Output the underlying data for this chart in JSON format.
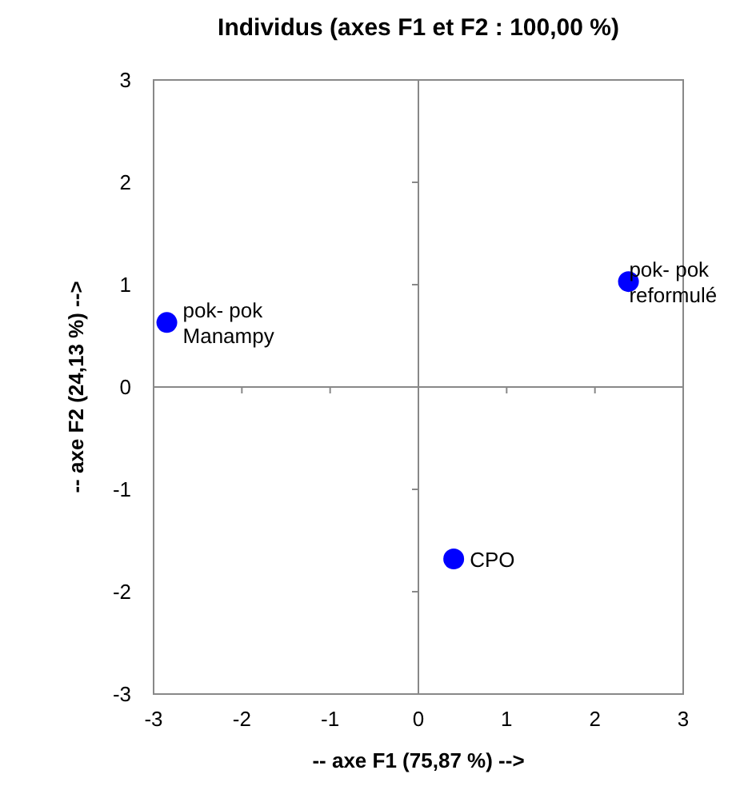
{
  "chart_data": {
    "type": "scatter",
    "title": "Individus (axes F1 et F2 : 100,00 %)",
    "xlabel": "-- axe F1 (75,87 %) -->",
    "ylabel": "-- axe F2 (24,13 %) -->",
    "x": [
      -2.85,
      2.38,
      0.4
    ],
    "series": [
      {
        "color": "#0000ff",
        "values": [
          0.63,
          1.03,
          -1.68
        ]
      }
    ],
    "marker": "circle",
    "xlim": [
      -3,
      3
    ],
    "ylim": [
      -3,
      3
    ],
    "xticks": [
      -3,
      -2,
      -1,
      0,
      1,
      2,
      3
    ],
    "yticks": [
      -3,
      -2,
      -1,
      0,
      1,
      2,
      3
    ],
    "annotations": [
      {
        "text": "pok- pok\nManampy",
        "x": -2.85,
        "y": 0.63
      },
      {
        "text": "pok- pok\nreformulé",
        "x": 2.38,
        "y": 1.03
      },
      {
        "text": "CPO",
        "x": 0.4,
        "y": -1.68
      }
    ]
  }
}
